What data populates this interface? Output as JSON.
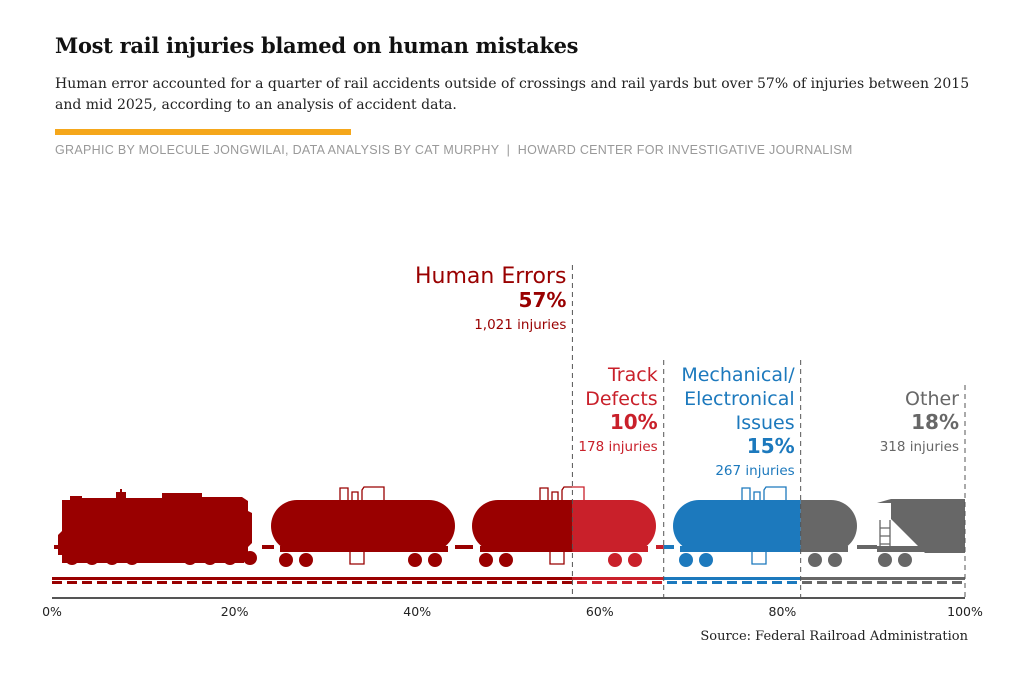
{
  "title": "Most rail injuries blamed on human mistakes",
  "subtitle": "Human error accounted for a quarter of rail accidents outside of crossings and rail yards but over 57% of injuries between 2015 and mid 2025, according to an analysis of accident data.",
  "credit": "GRAPHIC BY MOLECULE JONGWILAI, DATA ANALYSIS BY CAT MURPHY  |  HOWARD CENTER FOR INVESTIGATIVE JOURNALISM",
  "source": "Source: Federal Railroad Administration",
  "colors": {
    "accent": "#f5a71b",
    "human": "#990000",
    "track": "#c9202a",
    "mech": "#1c79bd",
    "other": "#676767"
  },
  "chart_data": {
    "type": "bar",
    "orientation": "horizontal-stacked",
    "title": "Most rail injuries blamed on human mistakes",
    "xlim": [
      0,
      100
    ],
    "x_ticks": [
      "0%",
      "20%",
      "40%",
      "60%",
      "80%",
      "100%"
    ],
    "x_tick_values": [
      0,
      20,
      40,
      60,
      80,
      100
    ],
    "segments": [
      {
        "key": "human",
        "label_lines": [
          "Human Errors"
        ],
        "percent": 57,
        "percent_label": "57%",
        "injuries": 1021,
        "injuries_label": "1,021 injuries"
      },
      {
        "key": "track",
        "label_lines": [
          "Track",
          "Defects"
        ],
        "percent": 10,
        "percent_label": "10%",
        "injuries": 178,
        "injuries_label": "178 injuries"
      },
      {
        "key": "mech",
        "label_lines": [
          "Mechanical/",
          "Electronical",
          "Issues"
        ],
        "percent": 15,
        "percent_label": "15%",
        "injuries": 267,
        "injuries_label": "267 injuries"
      },
      {
        "key": "other",
        "label_lines": [
          "Other"
        ],
        "percent": 18,
        "percent_label": "18%",
        "injuries": 318,
        "injuries_label": "318 injuries"
      }
    ]
  }
}
